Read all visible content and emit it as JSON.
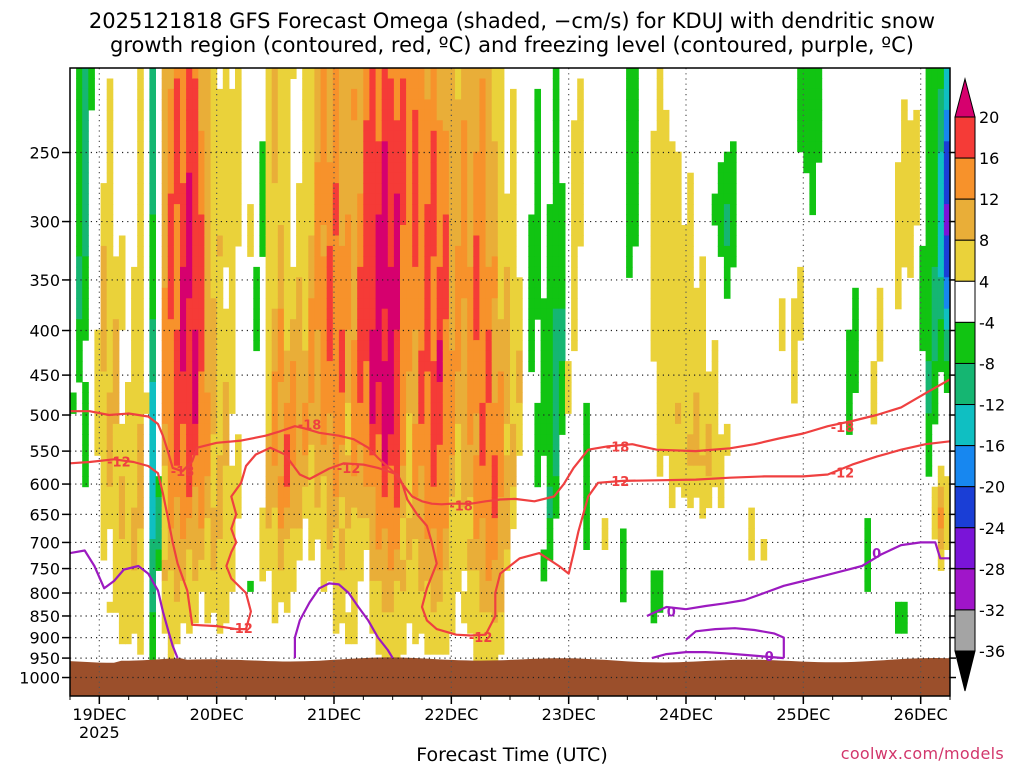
{
  "chart_data": {
    "type": "heatmap",
    "title": "2025121818 GFS Forecast Omega (shaded, −cm/s) for KDUJ with dendritic snow",
    "subtitle": "growth region (contoured, red, ºC) and freezing level (contoured, purple, ºC)",
    "xlabel": "Forecast Time (UTC)",
    "ylabel": "",
    "y_axis": {
      "scale": "log",
      "reversed": true,
      "ticks": [
        250,
        300,
        350,
        400,
        450,
        500,
        550,
        600,
        650,
        700,
        750,
        800,
        850,
        900,
        950,
        1000
      ],
      "ylim": [
        200,
        1050
      ]
    },
    "x_axis": {
      "range_hours": [
        0,
        180
      ],
      "ticks": [
        {
          "label": "19DEC",
          "sub": "2025",
          "hour": 6
        },
        {
          "label": "20DEC",
          "hour": 30
        },
        {
          "label": "21DEC",
          "hour": 54
        },
        {
          "label": "22DEC",
          "hour": 78
        },
        {
          "label": "23DEC",
          "hour": 102
        },
        {
          "label": "24DEC",
          "hour": 126
        },
        {
          "label": "25DEC",
          "hour": 150
        },
        {
          "label": "26DEC",
          "hour": 174
        }
      ]
    },
    "grid": "dotted",
    "colorbar": {
      "placement": "right",
      "ticks": [
        20,
        16,
        12,
        8,
        4,
        -4,
        -8,
        -12,
        -16,
        -20,
        -24,
        -28,
        -32,
        -36
      ],
      "levels": [
        {
          "from": 20,
          "to": 24,
          "color": "#d6006e"
        },
        {
          "from": 16,
          "to": 20,
          "color": "#f53b37"
        },
        {
          "from": 12,
          "to": 16,
          "color": "#f7922b"
        },
        {
          "from": 8,
          "to": 12,
          "color": "#e9ae38"
        },
        {
          "from": 4,
          "to": 8,
          "color": "#ead23a"
        },
        {
          "from": -4,
          "to": 4,
          "color": "#ffffff"
        },
        {
          "from": -8,
          "to": -4,
          "color": "#11c412"
        },
        {
          "from": -12,
          "to": -8,
          "color": "#15b672"
        },
        {
          "from": -16,
          "to": -12,
          "color": "#0fbfc2"
        },
        {
          "from": -20,
          "to": -16,
          "color": "#1787f0"
        },
        {
          "from": -24,
          "to": -20,
          "color": "#1a3ed6"
        },
        {
          "from": -28,
          "to": -24,
          "color": "#7a14d8"
        },
        {
          "from": -32,
          "to": -28,
          "color": "#a015c9"
        },
        {
          "from": -36,
          "to": -32,
          "color": "#a4a4a4"
        },
        {
          "from": -40,
          "to": -36,
          "color": "#000000"
        }
      ]
    },
    "terrain_color": "#9b4f2b",
    "series": [
      {
        "name": "-12",
        "color": "#ef4040",
        "points": [
          [
            0,
            568
          ],
          [
            4,
            566
          ],
          [
            9,
            562
          ],
          [
            13,
            566
          ],
          [
            16,
            572
          ],
          [
            18,
            583
          ],
          [
            19,
            615
          ],
          [
            20,
            655
          ],
          [
            21,
            700
          ],
          [
            22,
            740
          ],
          [
            24,
            795
          ],
          [
            25,
            870
          ],
          [
            30,
            873
          ],
          [
            34,
            880
          ],
          [
            36,
            880
          ],
          [
            37,
            840
          ],
          [
            36,
            800
          ],
          [
            33,
            770
          ],
          [
            32,
            745
          ],
          [
            33,
            718
          ],
          [
            34,
            700
          ],
          [
            33,
            675
          ],
          [
            34,
            650
          ],
          [
            33,
            620
          ],
          [
            35,
            598
          ],
          [
            36,
            572
          ],
          [
            38,
            555
          ],
          [
            41,
            545
          ],
          [
            44,
            555
          ],
          [
            47,
            585
          ],
          [
            49,
            592
          ],
          [
            53,
            576
          ],
          [
            56,
            568
          ],
          [
            60,
            570
          ],
          [
            63,
            575
          ],
          [
            65,
            580
          ],
          [
            67,
            585
          ],
          [
            68,
            600
          ],
          [
            69,
            625
          ],
          [
            71,
            650
          ],
          [
            73,
            670
          ],
          [
            74,
            700
          ],
          [
            75,
            740
          ],
          [
            73,
            790
          ],
          [
            72,
            830
          ],
          [
            73,
            860
          ],
          [
            75,
            880
          ],
          [
            79,
            893
          ],
          [
            82,
            895
          ],
          [
            85,
            893
          ],
          [
            87,
            850
          ],
          [
            87,
            800
          ],
          [
            88,
            760
          ],
          [
            92,
            730
          ],
          [
            96,
            720
          ],
          [
            100,
            745
          ],
          [
            102,
            760
          ],
          [
            103,
            720
          ],
          [
            104,
            680
          ],
          [
            106,
            620
          ],
          [
            108,
            598
          ],
          [
            113,
            595
          ],
          [
            120,
            594
          ],
          [
            128,
            593
          ],
          [
            135,
            590
          ],
          [
            142,
            588
          ],
          [
            150,
            588
          ],
          [
            155,
            585
          ],
          [
            160,
            570
          ],
          [
            165,
            558
          ],
          [
            170,
            548
          ],
          [
            175,
            540
          ],
          [
            180,
            536
          ]
        ]
      },
      {
        "name": "-18",
        "color": "#ef4040",
        "points": [
          [
            0,
            495
          ],
          [
            4,
            495
          ],
          [
            8,
            500
          ],
          [
            12,
            498
          ],
          [
            16,
            502
          ],
          [
            18,
            512
          ],
          [
            19,
            528
          ],
          [
            20,
            550
          ],
          [
            21,
            575
          ],
          [
            23,
            580
          ],
          [
            25,
            565
          ],
          [
            26,
            545
          ],
          [
            30,
            538
          ],
          [
            35,
            535
          ],
          [
            40,
            528
          ],
          [
            43,
            522
          ],
          [
            46,
            515
          ],
          [
            48,
            518
          ],
          [
            51,
            524
          ],
          [
            55,
            528
          ],
          [
            58,
            533
          ],
          [
            61,
            545
          ],
          [
            63,
            560
          ],
          [
            66,
            580
          ],
          [
            68,
            600
          ],
          [
            70,
            620
          ],
          [
            72,
            628
          ],
          [
            74,
            632
          ],
          [
            76,
            633
          ],
          [
            78,
            632
          ],
          [
            82,
            632
          ],
          [
            85,
            628
          ],
          [
            88,
            625
          ],
          [
            91,
            624
          ],
          [
            95,
            628
          ],
          [
            99,
            620
          ],
          [
            101,
            600
          ],
          [
            103,
            575
          ],
          [
            106,
            548
          ],
          [
            110,
            543
          ],
          [
            115,
            540
          ],
          [
            120,
            548
          ],
          [
            128,
            550
          ],
          [
            135,
            546
          ],
          [
            140,
            540
          ],
          [
            145,
            532
          ],
          [
            150,
            525
          ],
          [
            155,
            515
          ],
          [
            160,
            508
          ],
          [
            165,
            500
          ],
          [
            170,
            490
          ],
          [
            175,
            472
          ],
          [
            180,
            455
          ]
        ]
      },
      {
        "name": "0",
        "color": "#9c1ac0",
        "points": [
          [
            0,
            720
          ],
          [
            3,
            715
          ],
          [
            5,
            745
          ],
          [
            7,
            790
          ],
          [
            9,
            775
          ],
          [
            11,
            752
          ],
          [
            14,
            745
          ],
          [
            16,
            760
          ],
          [
            18,
            795
          ],
          [
            19,
            840
          ],
          [
            20,
            880
          ],
          [
            21,
            920
          ],
          [
            22,
            950
          ]
        ]
      },
      {
        "name": "0",
        "color": "#9c1ac0",
        "points": [
          [
            46,
            950
          ],
          [
            46,
            900
          ],
          [
            47,
            860
          ],
          [
            49,
            820
          ],
          [
            51,
            790
          ],
          [
            53,
            780
          ],
          [
            55,
            782
          ],
          [
            57,
            800
          ],
          [
            59,
            830
          ],
          [
            61,
            860
          ],
          [
            63,
            900
          ],
          [
            65,
            930
          ],
          [
            66,
            950
          ]
        ]
      },
      {
        "name": "0",
        "color": "#9c1ac0",
        "points": [
          [
            118,
            850
          ],
          [
            122,
            830
          ],
          [
            126,
            835
          ],
          [
            130,
            828
          ],
          [
            134,
            822
          ],
          [
            138,
            815
          ],
          [
            142,
            800
          ],
          [
            146,
            785
          ],
          [
            150,
            775
          ],
          [
            154,
            765
          ],
          [
            158,
            755
          ],
          [
            162,
            745
          ],
          [
            166,
            722
          ],
          [
            170,
            705
          ],
          [
            174,
            700
          ],
          [
            177,
            700
          ],
          [
            178,
            730
          ],
          [
            180,
            730
          ]
        ]
      },
      {
        "name": "0",
        "color": "#9c1ac0",
        "points": [
          [
            126,
            905
          ],
          [
            128,
            885
          ],
          [
            132,
            880
          ],
          [
            136,
            878
          ],
          [
            140,
            882
          ],
          [
            144,
            890
          ],
          [
            146,
            900
          ],
          [
            146,
            950
          ]
        ]
      },
      {
        "name": "0",
        "color": "#9c1ac0",
        "points": [
          [
            119,
            950
          ],
          [
            122,
            940
          ],
          [
            126,
            935
          ],
          [
            130,
            935
          ],
          [
            134,
            938
          ],
          [
            138,
            942
          ],
          [
            142,
            946
          ],
          [
            146,
            950
          ]
        ]
      }
    ],
    "annotations": [
      {
        "text": "-12",
        "hour": 10,
        "p": 565,
        "color": "#ef4040"
      },
      {
        "text": "-18",
        "hour": 23,
        "p": 580,
        "color": "#ef4040"
      },
      {
        "text": "-18",
        "hour": 49,
        "p": 513,
        "color": "#ef4040"
      },
      {
        "text": "-12",
        "hour": 57,
        "p": 575,
        "color": "#ef4040"
      },
      {
        "text": "-12",
        "hour": 35,
        "p": 878,
        "color": "#ef4040"
      },
      {
        "text": "-18",
        "hour": 80,
        "p": 635,
        "color": "#ef4040"
      },
      {
        "text": "-12",
        "hour": 84,
        "p": 898,
        "color": "#ef4040"
      },
      {
        "text": "-18",
        "hour": 112,
        "p": 543,
        "color": "#ef4040"
      },
      {
        "text": "-12",
        "hour": 112,
        "p": 595,
        "color": "#ef4040"
      },
      {
        "text": "-18",
        "hour": 158,
        "p": 516,
        "color": "#ef4040"
      },
      {
        "text": "-12",
        "hour": 158,
        "p": 582,
        "color": "#ef4040"
      },
      {
        "text": "0",
        "hour": 123,
        "p": 840,
        "color": "#9c1ac0"
      },
      {
        "text": "0",
        "hour": 165,
        "p": 720,
        "color": "#9c1ac0"
      },
      {
        "text": "0",
        "hour": 143,
        "p": 945,
        "color": "#9c1ac0"
      }
    ]
  },
  "footer": {
    "credit": "coolwx.com/models"
  }
}
